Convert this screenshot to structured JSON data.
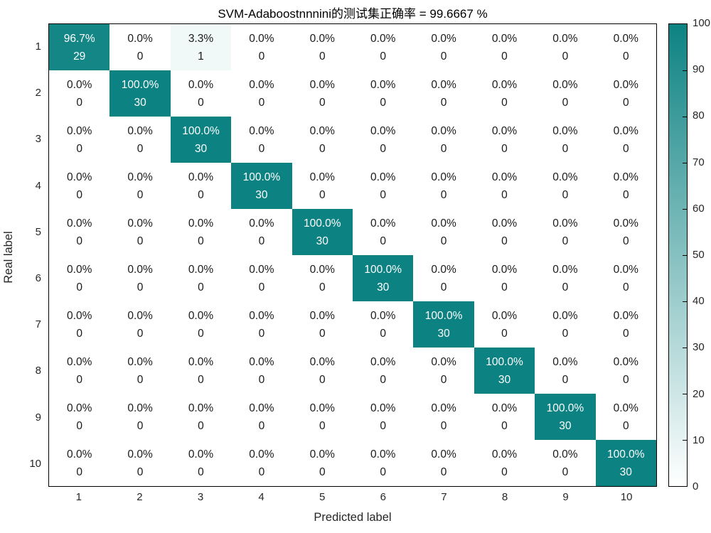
{
  "title": "SVM-Adaboostnnnini的测试集正确率 = 99.6667 %",
  "axes": {
    "x_label": "Predicted label",
    "y_label": "Real label",
    "x_ticks": [
      "1",
      "2",
      "3",
      "4",
      "5",
      "6",
      "7",
      "8",
      "9",
      "10"
    ],
    "y_ticks": [
      "1",
      "2",
      "3",
      "4",
      "5",
      "6",
      "7",
      "8",
      "9",
      "10"
    ]
  },
  "colorbar": {
    "min": 0,
    "max": 100,
    "tick_values": [
      0,
      10,
      20,
      30,
      40,
      50,
      60,
      70,
      80,
      90,
      100
    ],
    "tick_labels": [
      "0",
      "10",
      "20",
      "30",
      "40",
      "50",
      "60",
      "70",
      "80",
      "90",
      "100"
    ],
    "color_low": "#ffffff",
    "color_high": "#0d8282"
  },
  "chart_data": {
    "type": "heatmap",
    "title": "SVM-Adaboostnnnini的测试集正确率 = 99.6667 %",
    "xlabel": "Predicted label",
    "ylabel": "Real label",
    "categories_x": [
      1,
      2,
      3,
      4,
      5,
      6,
      7,
      8,
      9,
      10
    ],
    "categories_y": [
      1,
      2,
      3,
      4,
      5,
      6,
      7,
      8,
      9,
      10
    ],
    "value_range": [
      0,
      100
    ],
    "colormap": {
      "low": "#ffffff",
      "high": "#0d8282"
    },
    "percent_matrix": [
      [
        96.7,
        0.0,
        3.3,
        0.0,
        0.0,
        0.0,
        0.0,
        0.0,
        0.0,
        0.0
      ],
      [
        0.0,
        100.0,
        0.0,
        0.0,
        0.0,
        0.0,
        0.0,
        0.0,
        0.0,
        0.0
      ],
      [
        0.0,
        0.0,
        100.0,
        0.0,
        0.0,
        0.0,
        0.0,
        0.0,
        0.0,
        0.0
      ],
      [
        0.0,
        0.0,
        0.0,
        100.0,
        0.0,
        0.0,
        0.0,
        0.0,
        0.0,
        0.0
      ],
      [
        0.0,
        0.0,
        0.0,
        0.0,
        100.0,
        0.0,
        0.0,
        0.0,
        0.0,
        0.0
      ],
      [
        0.0,
        0.0,
        0.0,
        0.0,
        0.0,
        100.0,
        0.0,
        0.0,
        0.0,
        0.0
      ],
      [
        0.0,
        0.0,
        0.0,
        0.0,
        0.0,
        0.0,
        100.0,
        0.0,
        0.0,
        0.0
      ],
      [
        0.0,
        0.0,
        0.0,
        0.0,
        0.0,
        0.0,
        0.0,
        100.0,
        0.0,
        0.0
      ],
      [
        0.0,
        0.0,
        0.0,
        0.0,
        0.0,
        0.0,
        0.0,
        0.0,
        100.0,
        0.0
      ],
      [
        0.0,
        0.0,
        0.0,
        0.0,
        0.0,
        0.0,
        0.0,
        0.0,
        0.0,
        100.0
      ]
    ],
    "count_matrix": [
      [
        29,
        0,
        1,
        0,
        0,
        0,
        0,
        0,
        0,
        0
      ],
      [
        0,
        30,
        0,
        0,
        0,
        0,
        0,
        0,
        0,
        0
      ],
      [
        0,
        0,
        30,
        0,
        0,
        0,
        0,
        0,
        0,
        0
      ],
      [
        0,
        0,
        0,
        30,
        0,
        0,
        0,
        0,
        0,
        0
      ],
      [
        0,
        0,
        0,
        0,
        30,
        0,
        0,
        0,
        0,
        0
      ],
      [
        0,
        0,
        0,
        0,
        0,
        30,
        0,
        0,
        0,
        0
      ],
      [
        0,
        0,
        0,
        0,
        0,
        0,
        30,
        0,
        0,
        0
      ],
      [
        0,
        0,
        0,
        0,
        0,
        0,
        0,
        30,
        0,
        0
      ],
      [
        0,
        0,
        0,
        0,
        0,
        0,
        0,
        0,
        30,
        0
      ],
      [
        0,
        0,
        0,
        0,
        0,
        0,
        0,
        0,
        0,
        30
      ]
    ]
  }
}
